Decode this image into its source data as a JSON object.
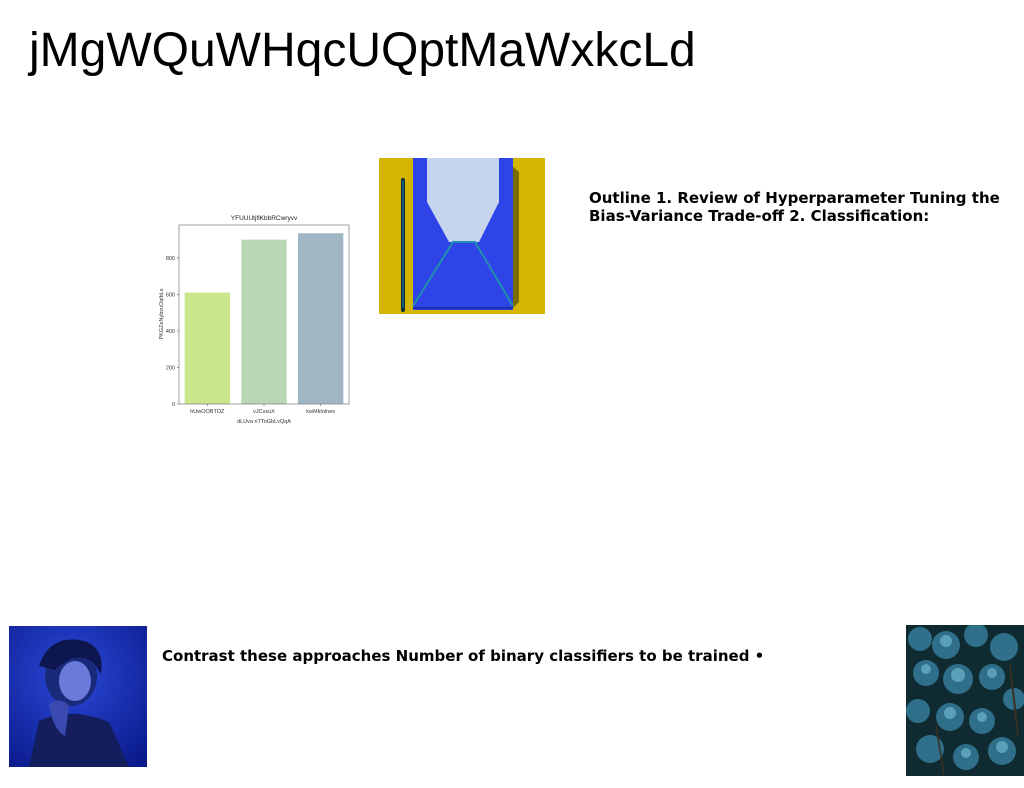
{
  "slide": {
    "title": "jMgWQuWHqcUQptMaWxkcLd",
    "outline_text": "Outline 1. Review of Hyperparameter Tuning the Bias-Variance Trade-off 2. Classification:",
    "contrast_text": "Contrast these approaches Number of binary classifiers to be trained •"
  },
  "images": {
    "envelope": "envelope-illustration",
    "portrait": "portrait-photo-blue",
    "forest": "forest-aerial-photo"
  },
  "chart_data": {
    "type": "bar",
    "title": "YFUUUtjflKbbRCwryvv",
    "xlabel": "dLUva nTToGbLvQqA",
    "ylabel": "PKGZeNybzuOqlbLs",
    "categories": [
      "hUwOOBTOZ",
      "vJCvsuX",
      "kwMkIolnes"
    ],
    "values": [
      610,
      900,
      935
    ],
    "colors": [
      "#c9e68a",
      "#b8d6b1",
      "#a0b6c4"
    ],
    "ylim": [
      0,
      980
    ],
    "yticks": [
      0,
      200,
      400,
      600,
      800
    ],
    "grid": false
  }
}
